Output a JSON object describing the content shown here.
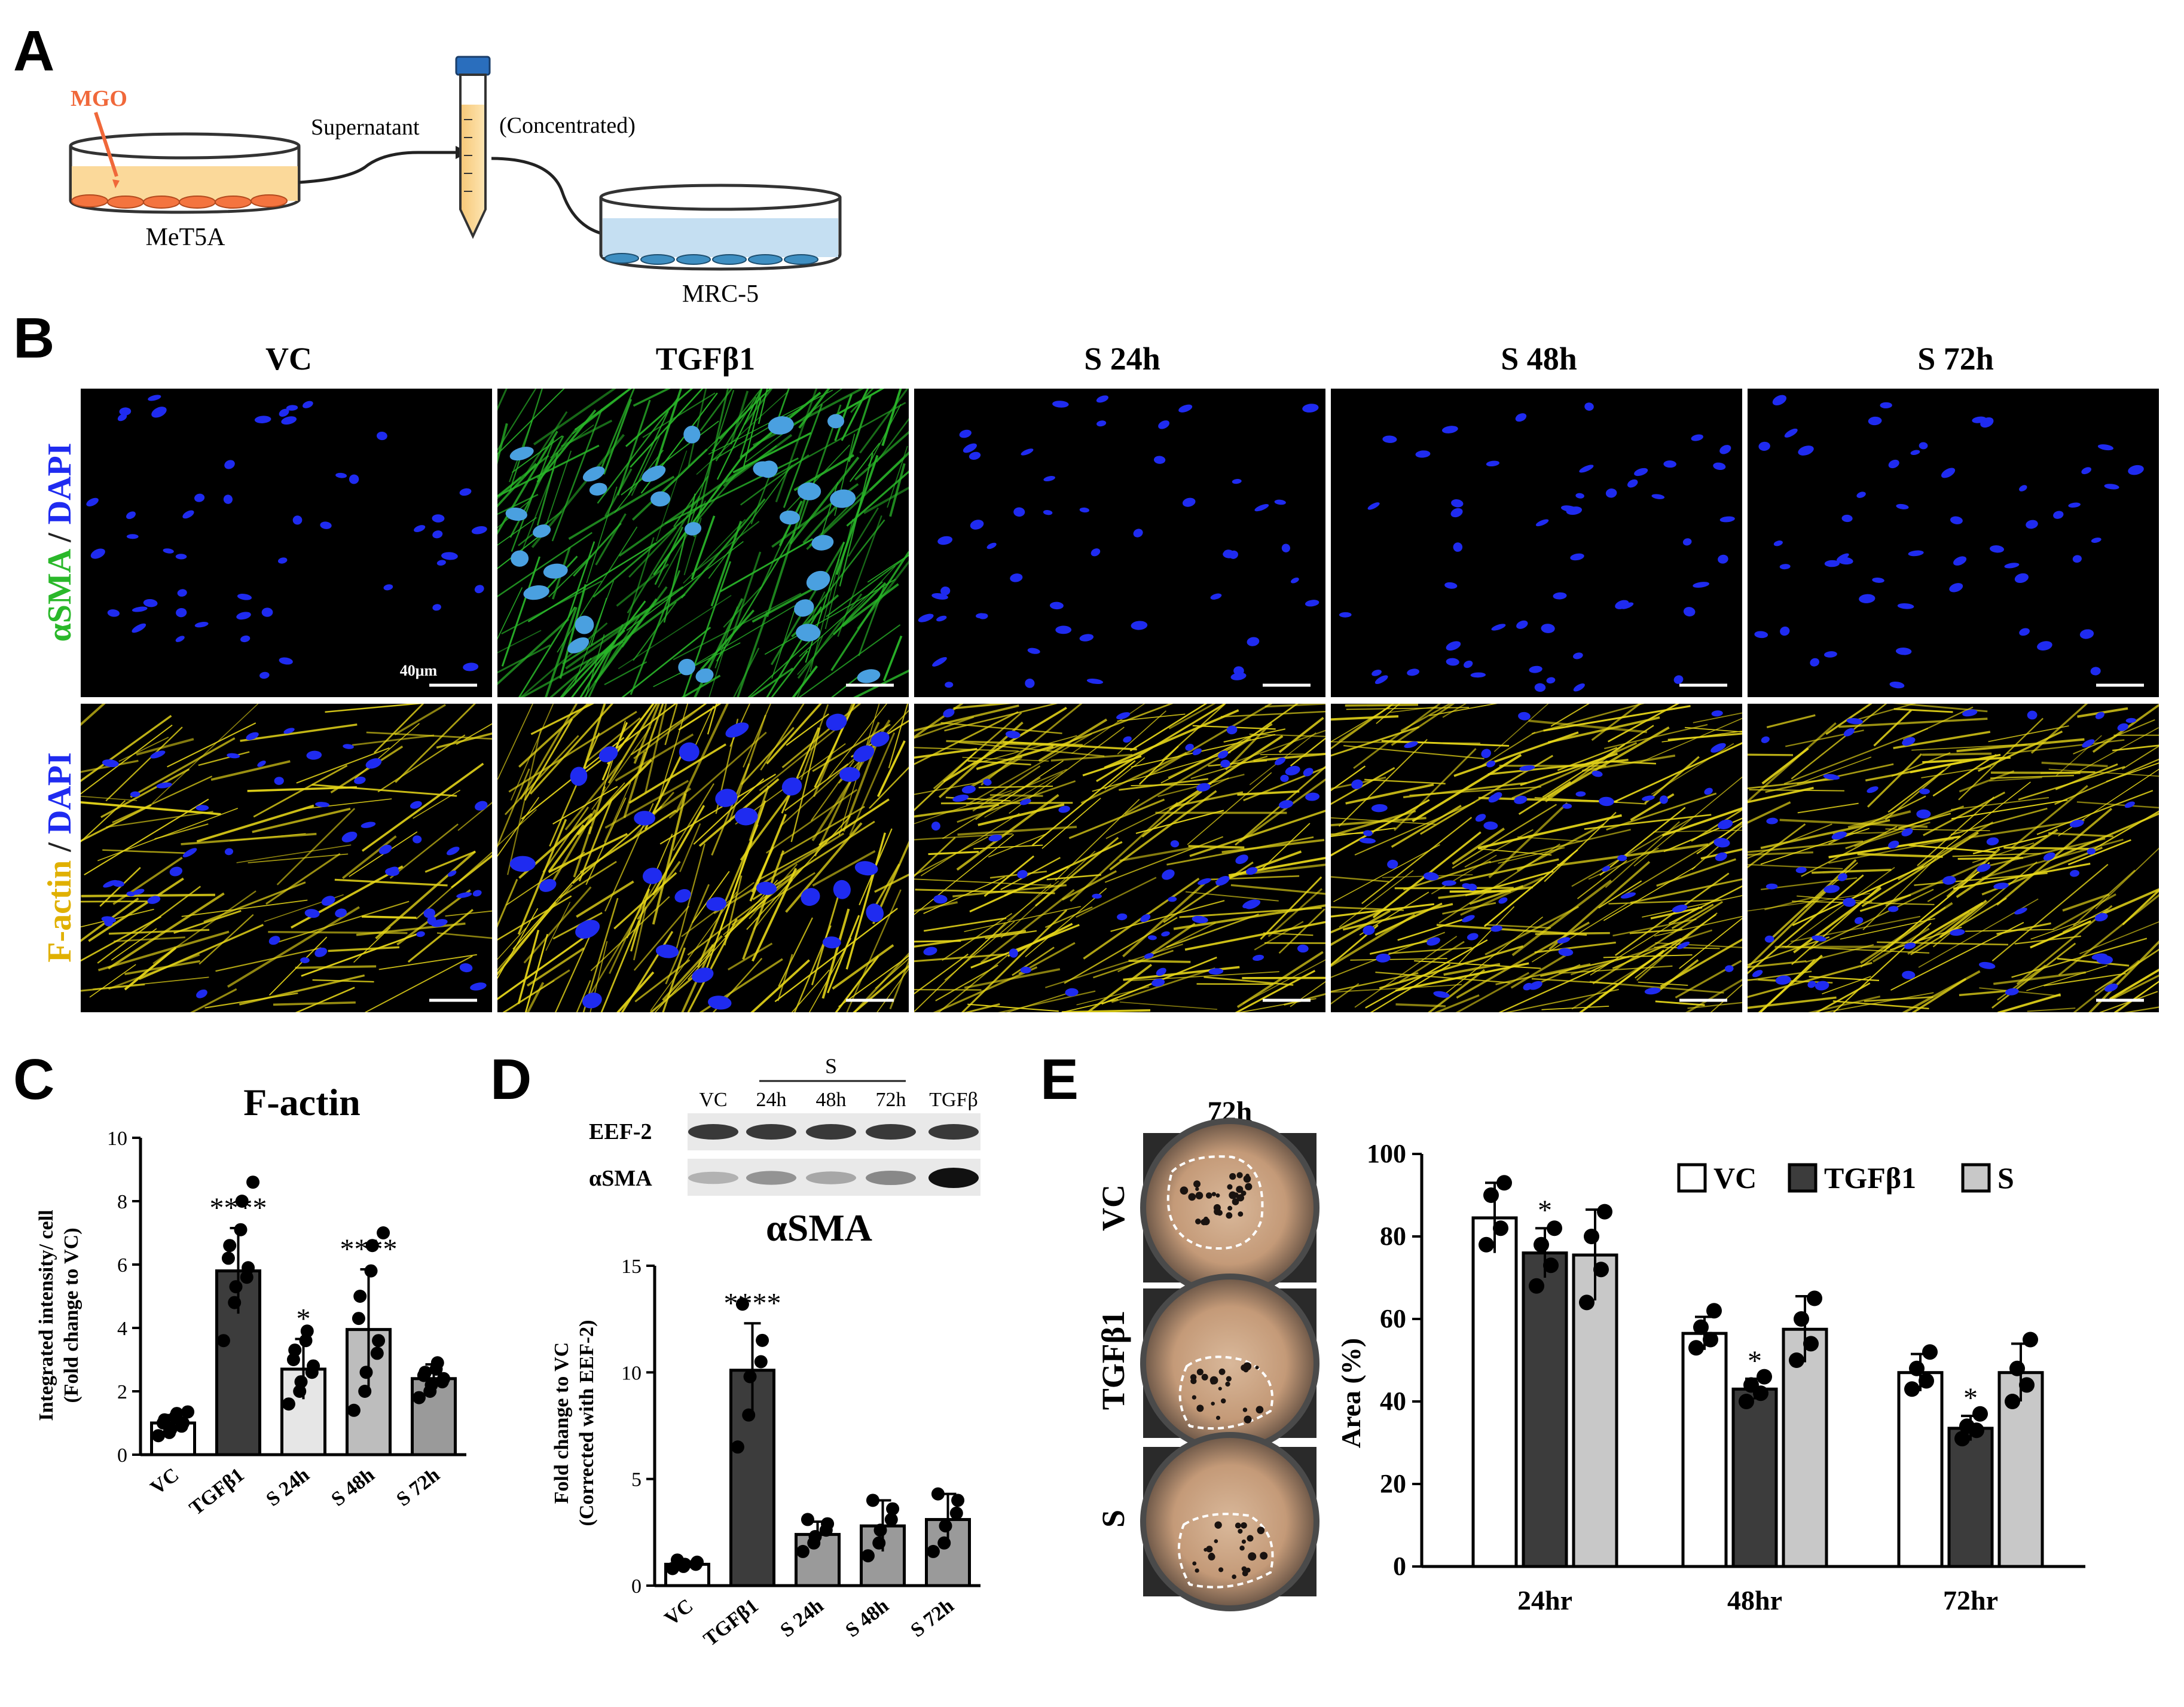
{
  "panelA": {
    "letter": "A",
    "mgo": "MGO",
    "met5a": "MeT5A",
    "supernatant": "Supernatant",
    "concentrated": "(Concentrated)",
    "mrc5": "MRC-5",
    "colors": {
      "mgo": "#f0683a",
      "medium1": "#fbd99a",
      "medium2": "#c5dff2",
      "cells1": "#f4743f",
      "cells2": "#3f8fc2"
    }
  },
  "panelB": {
    "letter": "B",
    "columns": [
      "VC",
      "TGFβ1",
      "S 24h",
      "S 48h",
      "S 72h"
    ],
    "row1": {
      "stain": "αSMA",
      "sep": " / ",
      "dapi": "DAPI"
    },
    "row2": {
      "stain": "F-actin",
      "sep": " / ",
      "dapi": "DAPI"
    },
    "scalebar": "40μm",
    "colors": {
      "green": "#2ab82a",
      "blue": "#1f2bf0",
      "yellow": "#e8d81a"
    }
  },
  "panelC": {
    "letter": "C",
    "chart_data": {
      "type": "bar",
      "title": "F-actin",
      "ylabel": [
        "Integrated intensity/ cell",
        "(Fold change to VC)"
      ],
      "categories": [
        "VC",
        "TGFβ1",
        "S 24h",
        "S 48h",
        "S 72h"
      ],
      "values": [
        1.0,
        5.8,
        2.7,
        3.95,
        2.4
      ],
      "errors": [
        0.25,
        1.35,
        0.95,
        1.9,
        0.45
      ],
      "colors": [
        "#ffffff",
        "#3c3c3c",
        "#e6e6e6",
        "#bdbdbd",
        "#9a9a9a"
      ],
      "ylim": [
        0,
        10
      ],
      "yticks": [
        "0",
        "2",
        "4",
        "6",
        "8",
        "10"
      ],
      "significance": [
        "",
        "****",
        "*",
        "****",
        ""
      ],
      "points": [
        [
          0.6,
          0.7,
          0.8,
          0.9,
          1.0,
          1.0,
          1.1,
          1.2,
          1.3,
          1.35
        ],
        [
          3.6,
          4.8,
          5.3,
          5.6,
          5.9,
          6.2,
          6.6,
          7.1,
          8.0,
          8.6
        ],
        [
          1.6,
          2.0,
          2.3,
          2.6,
          2.8,
          3.0,
          3.3,
          3.6,
          3.9
        ],
        [
          1.4,
          2.0,
          2.6,
          3.2,
          3.6,
          4.3,
          5.0,
          5.8,
          6.6,
          7.0
        ],
        [
          1.8,
          2.0,
          2.2,
          2.3,
          2.4,
          2.5,
          2.6,
          2.7,
          2.9
        ]
      ]
    }
  },
  "panelD": {
    "letter": "D",
    "blot": {
      "group_label": "S",
      "lanes": [
        "VC",
        "24h",
        "48h",
        "72h",
        "TGFβ"
      ],
      "rows": [
        "EEF-2",
        "αSMA"
      ],
      "asma_intensity": [
        0.25,
        0.4,
        0.3,
        0.45,
        1.0
      ]
    },
    "chart_data": {
      "type": "bar",
      "title": "αSMA",
      "ylabel": [
        "Fold change to VC",
        "(Corrected with EEF-2)"
      ],
      "categories": [
        "VC",
        "TGFβ1",
        "S 24h",
        "S 48h",
        "S 72h"
      ],
      "values": [
        1.0,
        10.1,
        2.4,
        2.8,
        3.1
      ],
      "errors": [
        0.1,
        2.2,
        0.6,
        1.2,
        1.2
      ],
      "colors": [
        "#ffffff",
        "#3c3c3c",
        "#9a9a9a",
        "#9a9a9a",
        "#9a9a9a"
      ],
      "ylim": [
        0,
        15
      ],
      "yticks": [
        "0",
        "5",
        "10",
        "15"
      ],
      "significance": [
        "",
        "****",
        "",
        "",
        ""
      ],
      "points": [
        [
          0.8,
          0.9,
          1.0,
          1.0,
          1.1,
          1.2
        ],
        [
          6.5,
          8.0,
          9.8,
          10.5,
          11.5,
          13.2
        ],
        [
          1.6,
          2.0,
          2.3,
          2.6,
          2.9,
          3.1
        ],
        [
          1.4,
          2.0,
          2.6,
          3.1,
          3.6,
          4.0
        ],
        [
          1.6,
          2.0,
          2.8,
          3.4,
          4.0,
          4.3
        ]
      ]
    }
  },
  "panelE": {
    "letter": "E",
    "photo_title": "72h",
    "photo_rows": [
      "VC",
      "TGFβ1",
      "S"
    ],
    "chart_data": {
      "type": "bar",
      "ylabel": "Area (%)",
      "categories": [
        "24hr",
        "48hr",
        "72hr"
      ],
      "series": [
        {
          "name": "VC",
          "values": [
            84.5,
            56.5,
            47.0
          ],
          "errors": [
            8.5,
            4.0,
            4.5
          ],
          "color": "#ffffff",
          "points": [
            [
              78,
              82,
              90,
              93
            ],
            [
              53,
              55,
              58,
              62
            ],
            [
              43,
              45,
              48,
              52
            ]
          ],
          "significance": [
            "",
            "",
            ""
          ]
        },
        {
          "name": "TGFβ1",
          "values": [
            76.0,
            43.0,
            33.5
          ],
          "errors": [
            6.0,
            2.5,
            3.0
          ],
          "color": "#3c3c3c",
          "points": [
            [
              68,
              73,
              78,
              82
            ],
            [
              40,
              42,
              44,
              46
            ],
            [
              31,
              33,
              34,
              37
            ]
          ],
          "significance": [
            "*",
            "*",
            "*"
          ]
        },
        {
          "name": "S",
          "values": [
            75.5,
            57.5,
            47.0
          ],
          "errors": [
            11.0,
            8.0,
            7.0
          ],
          "color": "#c8c8c8",
          "points": [
            [
              64,
              72,
              80,
              86
            ],
            [
              50,
              54,
              60,
              65
            ],
            [
              40,
              44,
              48,
              55
            ]
          ],
          "significance": [
            "",
            "",
            ""
          ]
        }
      ],
      "ylim": [
        0,
        100
      ],
      "yticks": [
        "0",
        "20",
        "40",
        "60",
        "80",
        "100"
      ],
      "legend": "top-right"
    }
  }
}
